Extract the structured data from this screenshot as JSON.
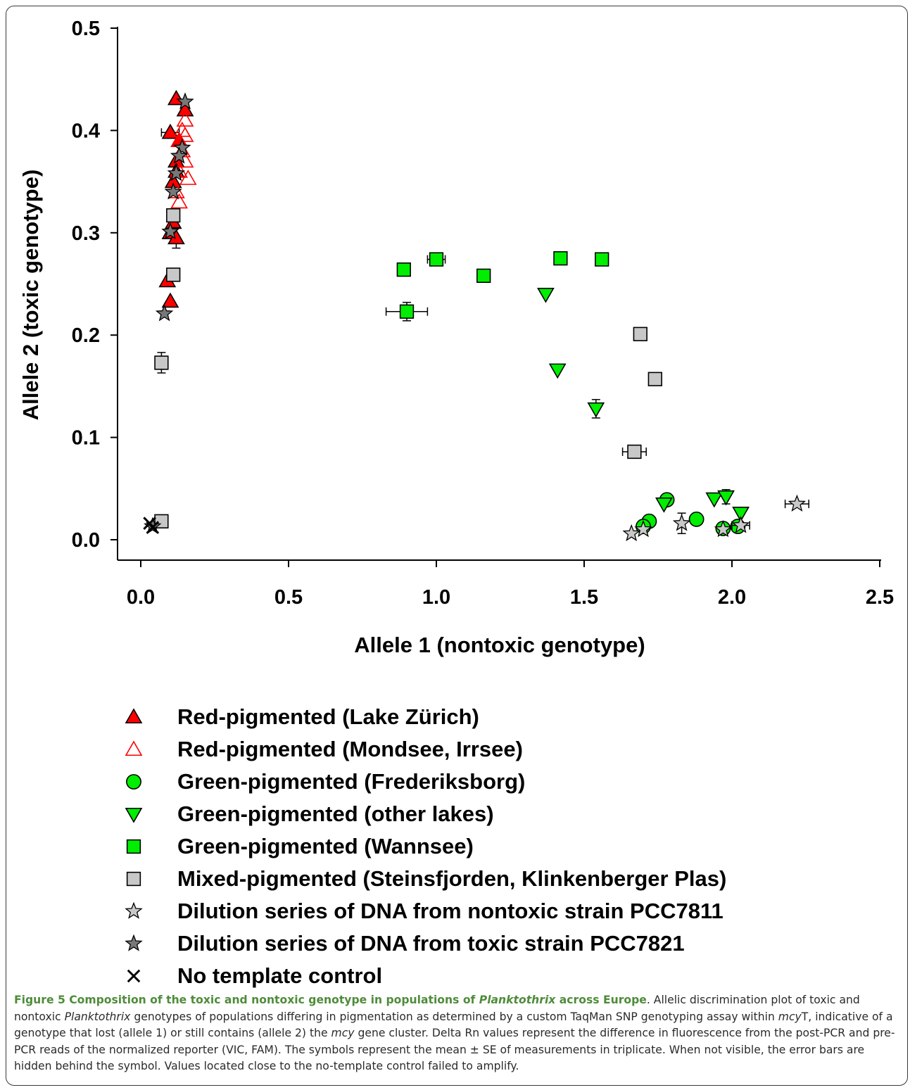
{
  "chart_data": {
    "type": "scatter",
    "title": "",
    "xlabel": "Allele 1 (nontoxic genotype)",
    "ylabel": "Allele 2 (toxic genotype)",
    "xlim": [
      0.0,
      2.5
    ],
    "ylim": [
      0.0,
      0.5
    ],
    "xticks": [
      "0.0",
      "0.5",
      "1.0",
      "1.5",
      "2.0",
      "2.5"
    ],
    "yticks": [
      "0.0",
      "0.1",
      "0.2",
      "0.3",
      "0.4",
      "0.5"
    ],
    "grid": false,
    "legend_position": "bottom",
    "series": [
      {
        "name": "Red-pigmented (Lake Zürich)",
        "marker": "triangle-up",
        "fill": "#ff0000",
        "stroke": "#000000",
        "points": [
          [
            0.12,
            0.431
          ],
          [
            0.15,
            0.42
          ],
          [
            0.1,
            0.398
          ],
          [
            0.13,
            0.39
          ],
          [
            0.12,
            0.37
          ],
          [
            0.12,
            0.36
          ],
          [
            0.11,
            0.35
          ],
          [
            0.11,
            0.31
          ],
          [
            0.1,
            0.3
          ],
          [
            0.12,
            0.295
          ],
          [
            0.09,
            0.253
          ],
          [
            0.1,
            0.233
          ]
        ],
        "xerr": [
          0.0,
          0.0,
          0.03,
          0.0,
          0.0,
          0.0,
          0.0,
          0.0,
          0.0,
          0.0,
          0.0,
          0.0
        ],
        "yerr": [
          0.0,
          0.0,
          0.0,
          0.0,
          0.0,
          0.0,
          0.0,
          0.0,
          0.0,
          0.01,
          0.0,
          0.0
        ]
      },
      {
        "name": "Red-pigmented (Mondsee, Irrsee)",
        "marker": "triangle-up",
        "fill": "none",
        "stroke": "#ff0000",
        "points": [
          [
            0.15,
            0.41
          ],
          [
            0.14,
            0.4
          ],
          [
            0.15,
            0.395
          ],
          [
            0.13,
            0.39
          ],
          [
            0.14,
            0.38
          ],
          [
            0.15,
            0.37
          ],
          [
            0.13,
            0.36
          ],
          [
            0.16,
            0.353
          ],
          [
            0.12,
            0.34
          ],
          [
            0.13,
            0.33
          ]
        ],
        "xerr": [
          0,
          0,
          0,
          0,
          0,
          0,
          0,
          0,
          0,
          0
        ],
        "yerr": [
          0,
          0,
          0,
          0,
          0,
          0,
          0,
          0,
          0,
          0
        ]
      },
      {
        "name": "Green-pigmented (Frederiksborg)",
        "marker": "circle",
        "fill": "#00ee00",
        "stroke": "#000000",
        "points": [
          [
            1.78,
            0.039
          ],
          [
            1.88,
            0.02
          ],
          [
            1.72,
            0.018
          ],
          [
            1.7,
            0.013
          ],
          [
            1.97,
            0.011
          ],
          [
            2.02,
            0.013
          ]
        ],
        "xerr": [
          0,
          0,
          0,
          0,
          0,
          0
        ],
        "yerr": [
          0,
          0,
          0,
          0,
          0,
          0
        ]
      },
      {
        "name": "Green-pigmented (other lakes)",
        "marker": "triangle-down",
        "fill": "#00ee00",
        "stroke": "#000000",
        "points": [
          [
            1.37,
            0.24
          ],
          [
            1.41,
            0.166
          ],
          [
            1.54,
            0.128
          ],
          [
            1.77,
            0.035
          ],
          [
            1.94,
            0.04
          ],
          [
            1.98,
            0.042
          ],
          [
            2.03,
            0.026
          ]
        ],
        "xerr": [
          0,
          0,
          0,
          0,
          0,
          0,
          0
        ],
        "yerr": [
          0,
          0,
          0.009,
          0,
          0,
          0.007,
          0
        ]
      },
      {
        "name": "Green-pigmented (Wannsee)",
        "marker": "square",
        "fill": "#00ee00",
        "stroke": "#000000",
        "points": [
          [
            0.89,
            0.264
          ],
          [
            1.0,
            0.274
          ],
          [
            1.16,
            0.258
          ],
          [
            1.42,
            0.275
          ],
          [
            1.56,
            0.274
          ],
          [
            0.9,
            0.223
          ]
        ],
        "xerr": [
          0,
          0.03,
          0,
          0,
          0,
          0.07
        ],
        "yerr": [
          0,
          0,
          0,
          0,
          0,
          0.009
        ]
      },
      {
        "name": "Mixed-pigmented (Steinsfjorden, Klinkenberger Plas)",
        "marker": "square",
        "fill": "#c8c8c8",
        "stroke": "#000000",
        "points": [
          [
            0.11,
            0.317
          ],
          [
            0.11,
            0.259
          ],
          [
            0.07,
            0.173
          ],
          [
            0.07,
            0.018
          ],
          [
            1.69,
            0.201
          ],
          [
            1.74,
            0.157
          ],
          [
            1.67,
            0.086
          ]
        ],
        "xerr": [
          0,
          0,
          0,
          0,
          0,
          0,
          0.04
        ],
        "yerr": [
          0,
          0,
          0.01,
          0,
          0,
          0,
          0
        ]
      },
      {
        "name": "Dilution series of DNA from nontoxic strain PCC7811",
        "marker": "star",
        "fill": "#c8c8c8",
        "stroke": "#000000",
        "points": [
          [
            1.66,
            0.006
          ],
          [
            1.7,
            0.01
          ],
          [
            1.83,
            0.016
          ],
          [
            1.97,
            0.01
          ],
          [
            2.03,
            0.014
          ],
          [
            2.22,
            0.035
          ]
        ],
        "xerr": [
          0,
          0,
          0,
          0,
          0.03,
          0.04
        ],
        "yerr": [
          0,
          0,
          0.01,
          0,
          0,
          0
        ]
      },
      {
        "name": "Dilution series of DNA from toxic strain PCC7821",
        "marker": "star",
        "fill": "#787878",
        "stroke": "#000000",
        "points": [
          [
            0.15,
            0.428
          ],
          [
            0.14,
            0.383
          ],
          [
            0.13,
            0.375
          ],
          [
            0.12,
            0.358
          ],
          [
            0.11,
            0.34
          ],
          [
            0.1,
            0.301
          ],
          [
            0.08,
            0.221
          ],
          [
            0.04,
            0.013
          ]
        ],
        "xerr": [
          0,
          0,
          0,
          0,
          0,
          0,
          0,
          0
        ],
        "yerr": [
          0,
          0,
          0,
          0,
          0,
          0,
          0,
          0
        ]
      },
      {
        "name": "No template control",
        "marker": "x",
        "fill": "none",
        "stroke": "#000000",
        "points": [
          [
            0.03,
            0.016
          ],
          [
            0.04,
            0.012
          ]
        ],
        "xerr": [
          0,
          0
        ],
        "yerr": [
          0,
          0
        ]
      }
    ]
  },
  "caption": {
    "bold_prefix": "Figure 5 Composition of the toxic and nontoxic genotype in populations of ",
    "bold_italic": "Planktothrix",
    "bold_suffix": " across Europe",
    "body_1": ". Allelic discrimination plot of toxic and nontoxic ",
    "body_italic_1": "Planktothrix",
    "body_2": " genotypes of populations differing in pigmentation as determined by a custom TaqMan SNP genotyping assay within ",
    "body_italic_2": "mcy",
    "body_3": "T, indicative of a genotype that lost (allele 1) or still contains (allele 2) the ",
    "body_italic_3": "mcy",
    "body_4": " gene cluster. Delta Rn values represent the difference in fluorescence from the post-PCR and pre-PCR reads of the normalized reporter (VIC, FAM). The symbols represent the mean ± SE of measurements in triplicate. When not visible, the error bars are hidden behind the symbol. Values located close to the no-template control failed to amplify."
  }
}
